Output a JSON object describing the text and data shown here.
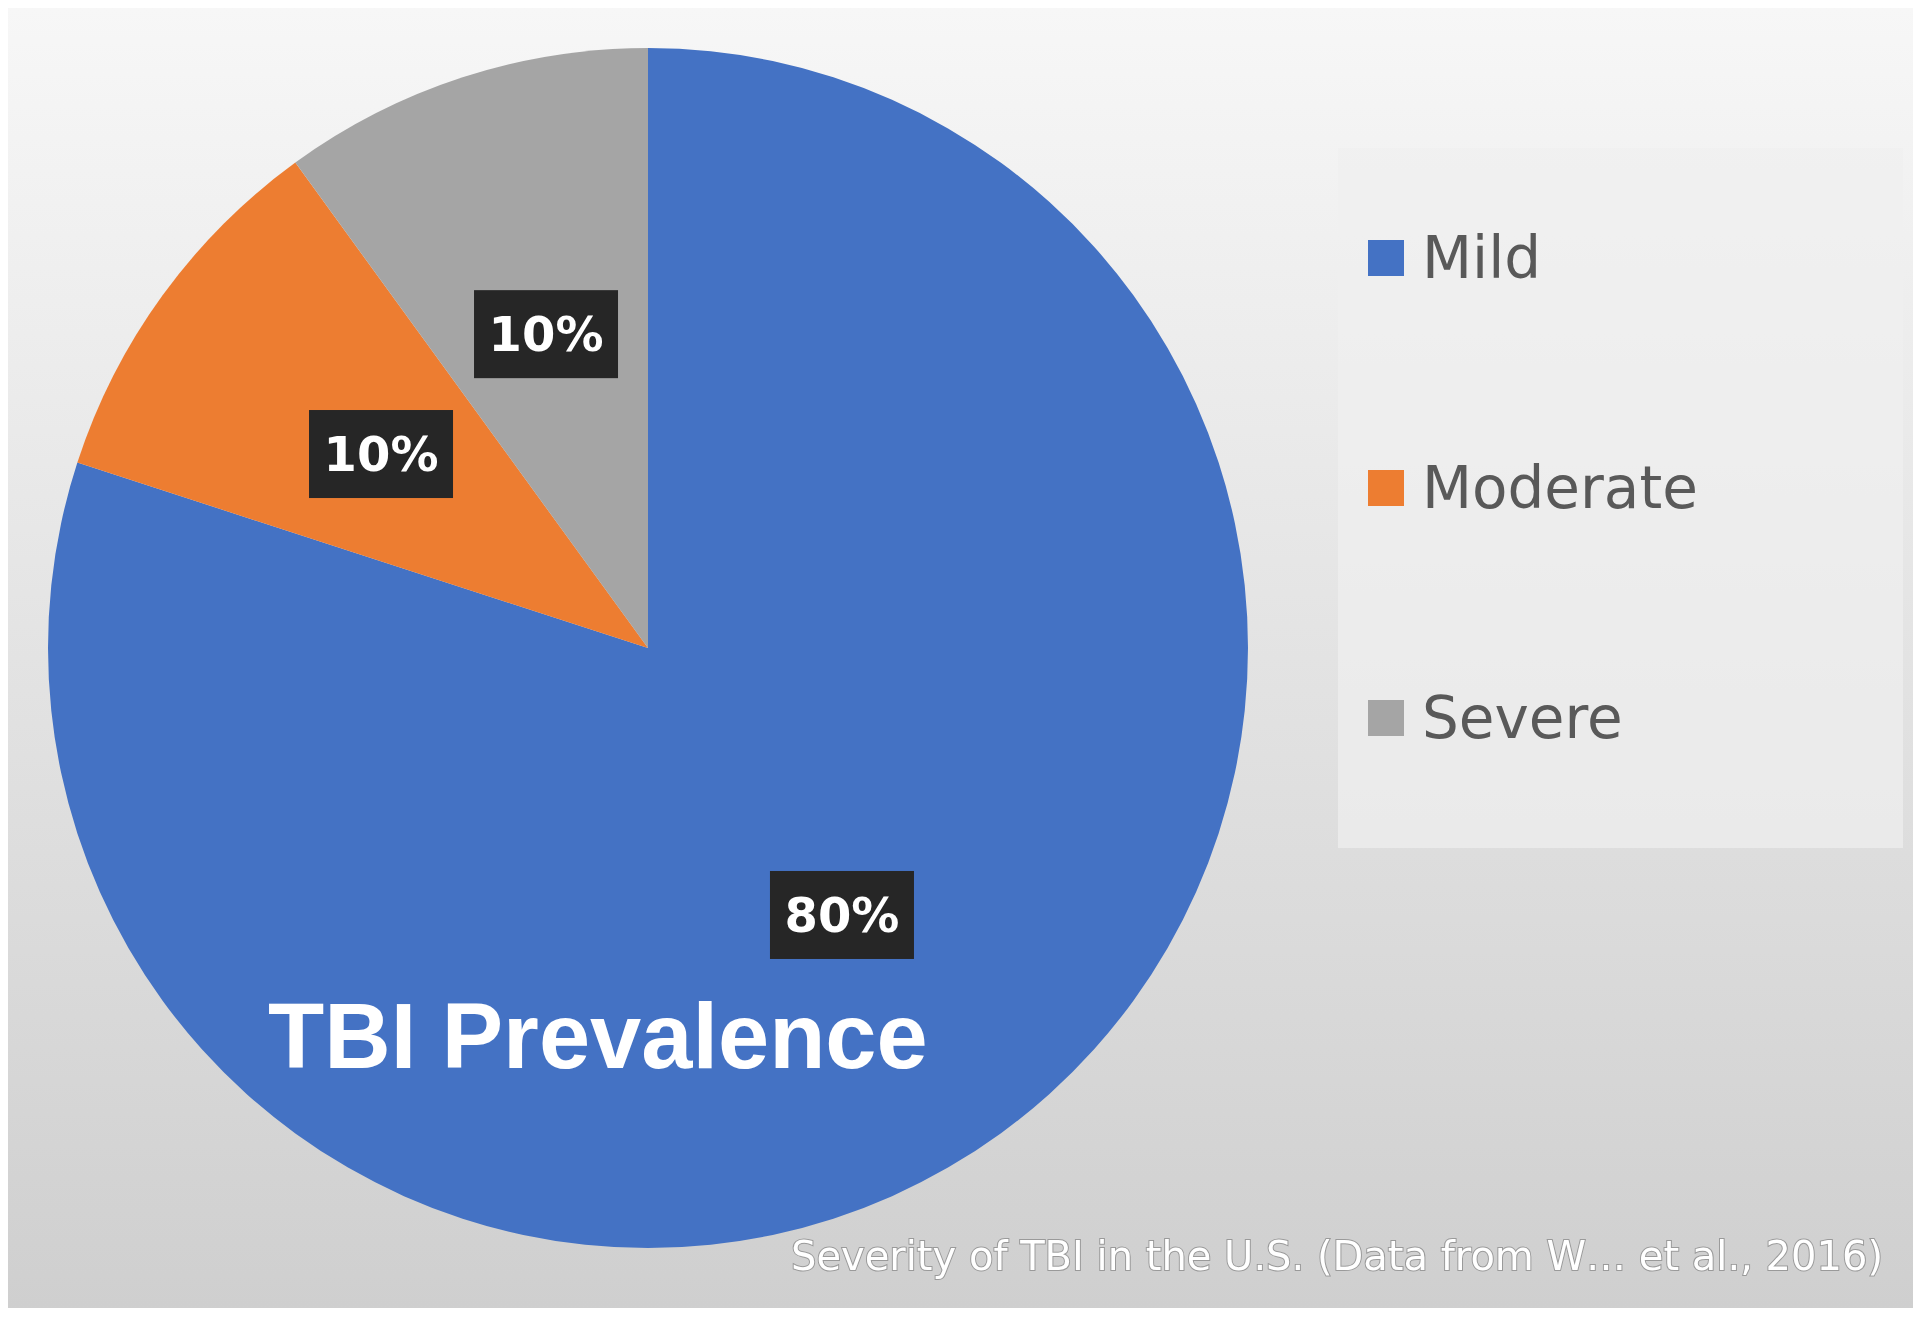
{
  "chart_data": {
    "type": "pie",
    "title": "TBI Prevalence",
    "categories": [
      "Mild",
      "Moderate",
      "Severe"
    ],
    "values": [
      80,
      10,
      10
    ],
    "colors": [
      "#4472c4",
      "#ed7d31",
      "#a5a5a5"
    ],
    "value_labels": [
      "80%",
      "10%",
      "10%"
    ],
    "legend": "right",
    "annotations": [
      "Severity of TBI in the U.S. (Data from W… et al., 2016)"
    ]
  }
}
